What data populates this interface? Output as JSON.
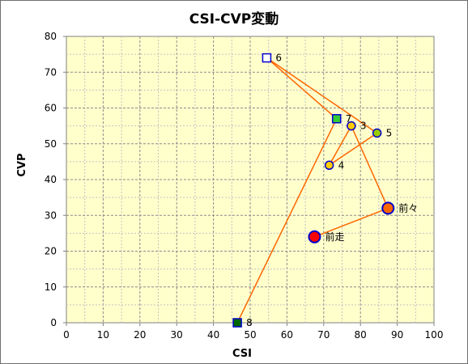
{
  "chart_data": {
    "type": "scatter",
    "title": "CSI-CVP変動",
    "xlabel": "CSI",
    "ylabel": "CVP",
    "xlim": [
      0,
      100
    ],
    "ylim": [
      0,
      80
    ],
    "x_ticks": [
      "0",
      "10",
      "20",
      "30",
      "40",
      "50",
      "60",
      "70",
      "80",
      "90",
      "100"
    ],
    "y_ticks": [
      "0",
      "10",
      "20",
      "30",
      "40",
      "50",
      "60",
      "70",
      "80"
    ],
    "grid": true,
    "plot_background": "#ffffcc",
    "line_color": "#ff6600",
    "points": [
      {
        "label": "前走",
        "x": 67.5,
        "y": 24,
        "shape": "circle-large",
        "fill": "#ff0000",
        "stroke": "#0000cc"
      },
      {
        "label": "前々",
        "x": 87.5,
        "y": 32,
        "shape": "circle-large",
        "fill": "#ff6600",
        "stroke": "#0000cc"
      },
      {
        "label": "3",
        "x": 77.5,
        "y": 55,
        "shape": "circle",
        "fill": "#ffcc00",
        "stroke": "#0000cc"
      },
      {
        "label": "4",
        "x": 71.5,
        "y": 44,
        "shape": "circle",
        "fill": "#ffcc00",
        "stroke": "#0000cc"
      },
      {
        "label": "5",
        "x": 84.5,
        "y": 53,
        "shape": "circle",
        "fill": "#99cc00",
        "stroke": "#0000cc"
      },
      {
        "label": "6",
        "x": 54.5,
        "y": 74,
        "shape": "square",
        "fill": "#ffffff",
        "stroke": "#0000cc"
      },
      {
        "label": "7",
        "x": 73.5,
        "y": 57,
        "shape": "square",
        "fill": "#33cc33",
        "stroke": "#0000cc"
      },
      {
        "label": "8",
        "x": 46.5,
        "y": 0,
        "shape": "square",
        "fill": "#006600",
        "stroke": "#0000cc"
      }
    ]
  }
}
